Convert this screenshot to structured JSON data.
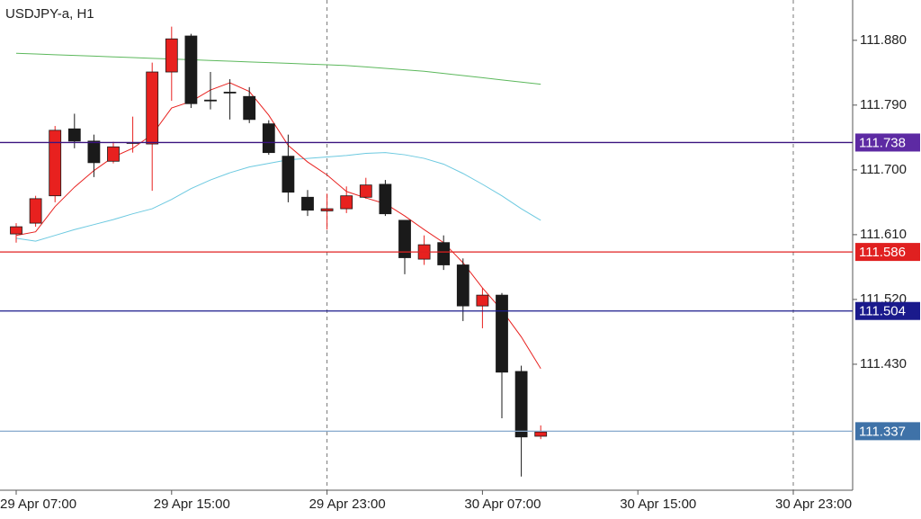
{
  "chart_data": {
    "type": "candlestick",
    "title": "USDJPY-a, H1",
    "categories": [
      "29 Apr 07:00",
      null,
      null,
      null,
      null,
      null,
      null,
      null,
      "29 Apr 15:00",
      null,
      null,
      null,
      null,
      null,
      null,
      null,
      "29 Apr 23:00",
      null,
      null,
      null,
      null,
      null,
      null,
      null,
      "30 Apr 07:00",
      null,
      null,
      null,
      null,
      null,
      null,
      null,
      "30 Apr 15:00",
      null,
      null,
      null,
      null,
      null,
      null,
      null,
      "30 Apr 23:00",
      null,
      null,
      null
    ],
    "open": [
      111.611,
      111.626,
      111.664,
      111.757,
      111.74,
      111.712,
      111.737,
      111.736,
      111.836,
      111.886,
      111.797,
      111.808,
      111.802,
      111.764,
      111.719,
      111.662,
      111.643,
      111.646,
      111.662,
      111.68,
      111.63,
      111.576,
      111.599,
      111.568,
      111.511,
      111.526,
      111.42,
      111.33,
      null,
      null,
      null,
      null,
      null,
      null,
      null,
      null,
      null,
      null,
      null,
      null,
      null,
      null,
      null,
      null
    ],
    "high": [
      111.626,
      111.664,
      111.761,
      111.778,
      111.749,
      111.739,
      111.774,
      111.849,
      111.899,
      111.889,
      111.836,
      111.826,
      111.815,
      111.769,
      111.749,
      111.672,
      111.667,
      111.677,
      111.689,
      111.686,
      111.63,
      111.609,
      111.609,
      111.577,
      111.536,
      111.529,
      111.428,
      111.345,
      null,
      null,
      null,
      null,
      null,
      null,
      null,
      null,
      null,
      null,
      null,
      null,
      null,
      null,
      null,
      null
    ],
    "low": [
      111.599,
      111.621,
      111.655,
      111.73,
      111.69,
      111.709,
      111.724,
      111.671,
      111.796,
      111.786,
      111.784,
      111.77,
      111.765,
      111.721,
      111.655,
      111.636,
      111.617,
      111.64,
      111.66,
      111.636,
      111.555,
      111.568,
      111.561,
      111.49,
      111.48,
      111.355,
      111.274,
      111.326,
      null,
      null,
      null,
      null,
      null,
      null,
      null,
      null,
      null,
      null,
      null,
      null,
      null,
      null,
      null,
      null
    ],
    "close": [
      111.621,
      111.66,
      111.755,
      111.74,
      111.71,
      111.732,
      111.738,
      111.836,
      111.882,
      111.792,
      111.796,
      111.807,
      111.77,
      111.724,
      111.669,
      111.644,
      111.646,
      111.664,
      111.679,
      111.639,
      111.578,
      111.596,
      111.568,
      111.511,
      111.526,
      111.419,
      111.329,
      111.336,
      null,
      null,
      null,
      null,
      null,
      null,
      null,
      null,
      null,
      null,
      null,
      null,
      null,
      null,
      null,
      null
    ],
    "bull_color": "#e8211f",
    "bear_color": "#1a1a1a",
    "series": [
      {
        "color": "#5cb85c",
        "values": [
          111.862,
          111.861,
          111.86,
          111.859,
          111.858,
          111.857,
          111.856,
          111.855,
          111.854,
          111.853,
          111.852,
          111.851,
          111.85,
          111.849,
          111.848,
          111.847,
          111.846,
          111.845,
          111.843,
          111.841,
          111.839,
          111.837,
          111.834,
          111.831,
          111.828,
          111.825,
          111.822,
          111.819,
          null,
          null,
          null,
          null,
          null,
          null,
          null,
          null,
          null,
          null,
          null,
          null,
          null,
          null,
          null,
          null
        ]
      },
      {
        "color": "#6cc9e0",
        "values": [
          111.605,
          111.601,
          111.609,
          111.617,
          111.624,
          111.631,
          111.639,
          111.646,
          111.659,
          111.674,
          111.686,
          111.696,
          111.704,
          111.709,
          111.714,
          111.716,
          111.718,
          111.72,
          111.723,
          111.724,
          111.721,
          111.716,
          111.708,
          111.695,
          111.68,
          111.664,
          111.646,
          111.63,
          null,
          null,
          null,
          null,
          null,
          null,
          null,
          null,
          null,
          null,
          null,
          null,
          null,
          null,
          null,
          null
        ]
      },
      {
        "color": "#e8211f",
        "values": [
          111.609,
          111.614,
          111.649,
          111.676,
          111.699,
          111.718,
          111.73,
          111.749,
          111.786,
          111.795,
          111.811,
          111.821,
          111.809,
          111.776,
          111.734,
          111.711,
          111.693,
          111.67,
          111.661,
          111.653,
          111.636,
          111.617,
          111.599,
          111.571,
          111.536,
          111.505,
          111.468,
          111.424,
          null,
          null,
          null,
          null,
          null,
          null,
          null,
          null,
          null,
          null,
          null,
          null,
          null,
          null,
          null,
          null
        ]
      }
    ],
    "levels": [
      {
        "value": 111.738,
        "color": "#3b1480",
        "label_color": "#5d2aa3"
      },
      {
        "value": 111.586,
        "color": "#e02020",
        "label_color": "#e02020"
      },
      {
        "value": 111.504,
        "color": "#1a1a8c",
        "label_color": "#1a1a8c"
      },
      {
        "value": 111.337,
        "color": "#86a8cc",
        "label_color": "#3f72a8"
      }
    ],
    "ylim": [
      111.255,
      111.936
    ],
    "yticks": [
      {
        "value": 111.88,
        "label": "111.880"
      },
      {
        "value": 111.79,
        "label": "111.790"
      },
      {
        "value": 111.7,
        "label": "111.700"
      },
      {
        "value": 111.61,
        "label": "111.610"
      },
      {
        "value": 111.52,
        "label": "111.520"
      },
      {
        "value": 111.43,
        "label": "111.430"
      }
    ],
    "separators": [
      16,
      40
    ],
    "grid": false
  }
}
